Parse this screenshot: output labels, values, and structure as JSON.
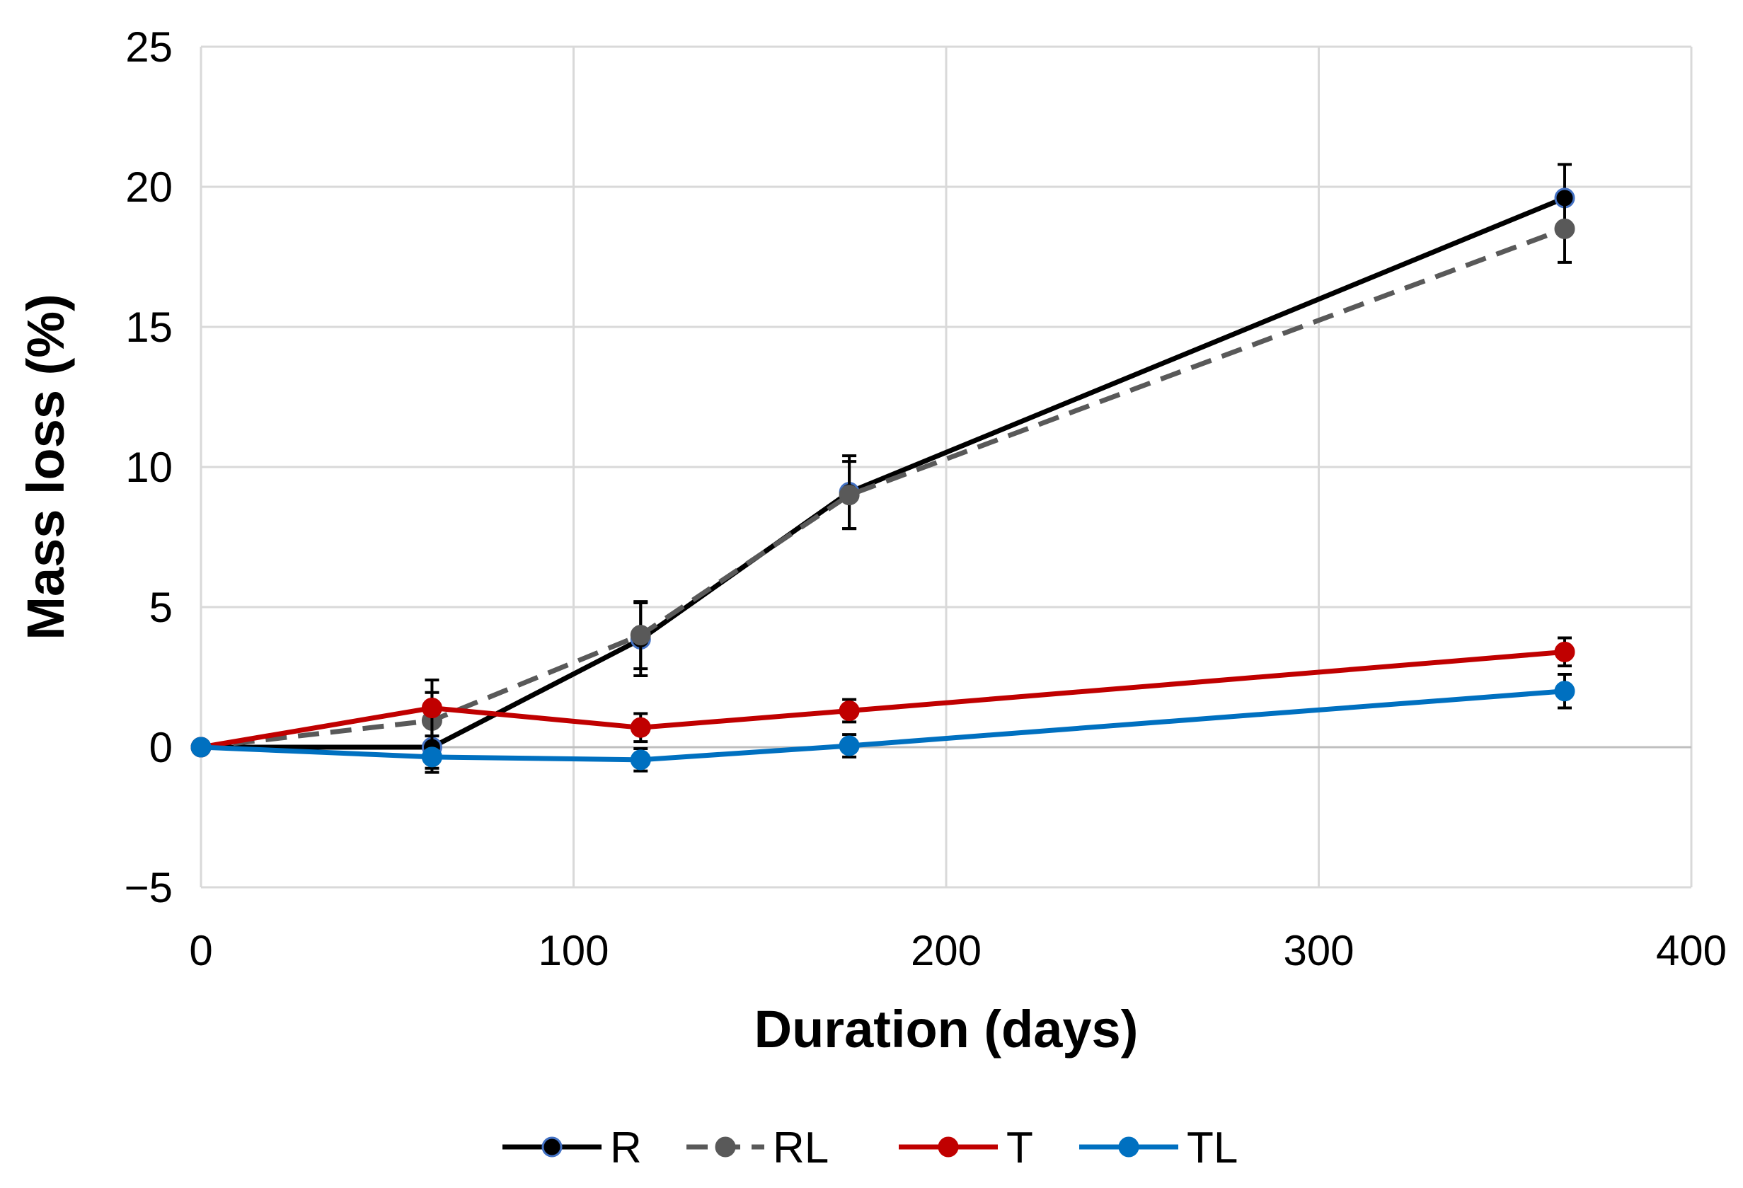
{
  "chart_data": {
    "type": "line",
    "title": "",
    "xlabel": "Duration (days)",
    "ylabel": "Mass loss (%)",
    "xlim": [
      0,
      400
    ],
    "ylim": [
      -5,
      25
    ],
    "xticks": [
      0,
      100,
      200,
      300,
      400
    ],
    "yticks": [
      -5,
      0,
      5,
      10,
      15,
      20,
      25
    ],
    "ytick_labels": [
      "−5",
      "0",
      "5",
      "10",
      "15",
      "20",
      "25"
    ],
    "grid": true,
    "legend_position": "bottom",
    "x": [
      0,
      62,
      118,
      174,
      366
    ],
    "series": [
      {
        "name": "R",
        "values": [
          0,
          0,
          3.85,
          9.1,
          19.6
        ],
        "err": [
          0,
          0.9,
          1.3,
          1.3,
          1.2
        ],
        "color": "#000000",
        "dash": false,
        "marker_fill": "#000000",
        "marker_edge": "#4472c4"
      },
      {
        "name": "RL",
        "values": [
          0,
          0.95,
          4.0,
          9.0,
          18.5
        ],
        "err": [
          0,
          1.0,
          1.2,
          1.2,
          1.2
        ],
        "color": "#595959",
        "dash": true,
        "marker_fill": "#595959",
        "marker_edge": "#595959"
      },
      {
        "name": "T",
        "values": [
          0,
          1.4,
          0.7,
          1.3,
          3.4
        ],
        "err": [
          0,
          1.0,
          0.5,
          0.4,
          0.5
        ],
        "color": "#c00000",
        "dash": false,
        "marker_fill": "#c00000",
        "marker_edge": "#c00000"
      },
      {
        "name": "TL",
        "values": [
          0,
          -0.35,
          -0.45,
          0.05,
          2.0
        ],
        "err": [
          0,
          0.4,
          0.4,
          0.4,
          0.6
        ],
        "color": "#0070c0",
        "dash": false,
        "marker_fill": "#0070c0",
        "marker_edge": "#0070c0"
      }
    ]
  }
}
